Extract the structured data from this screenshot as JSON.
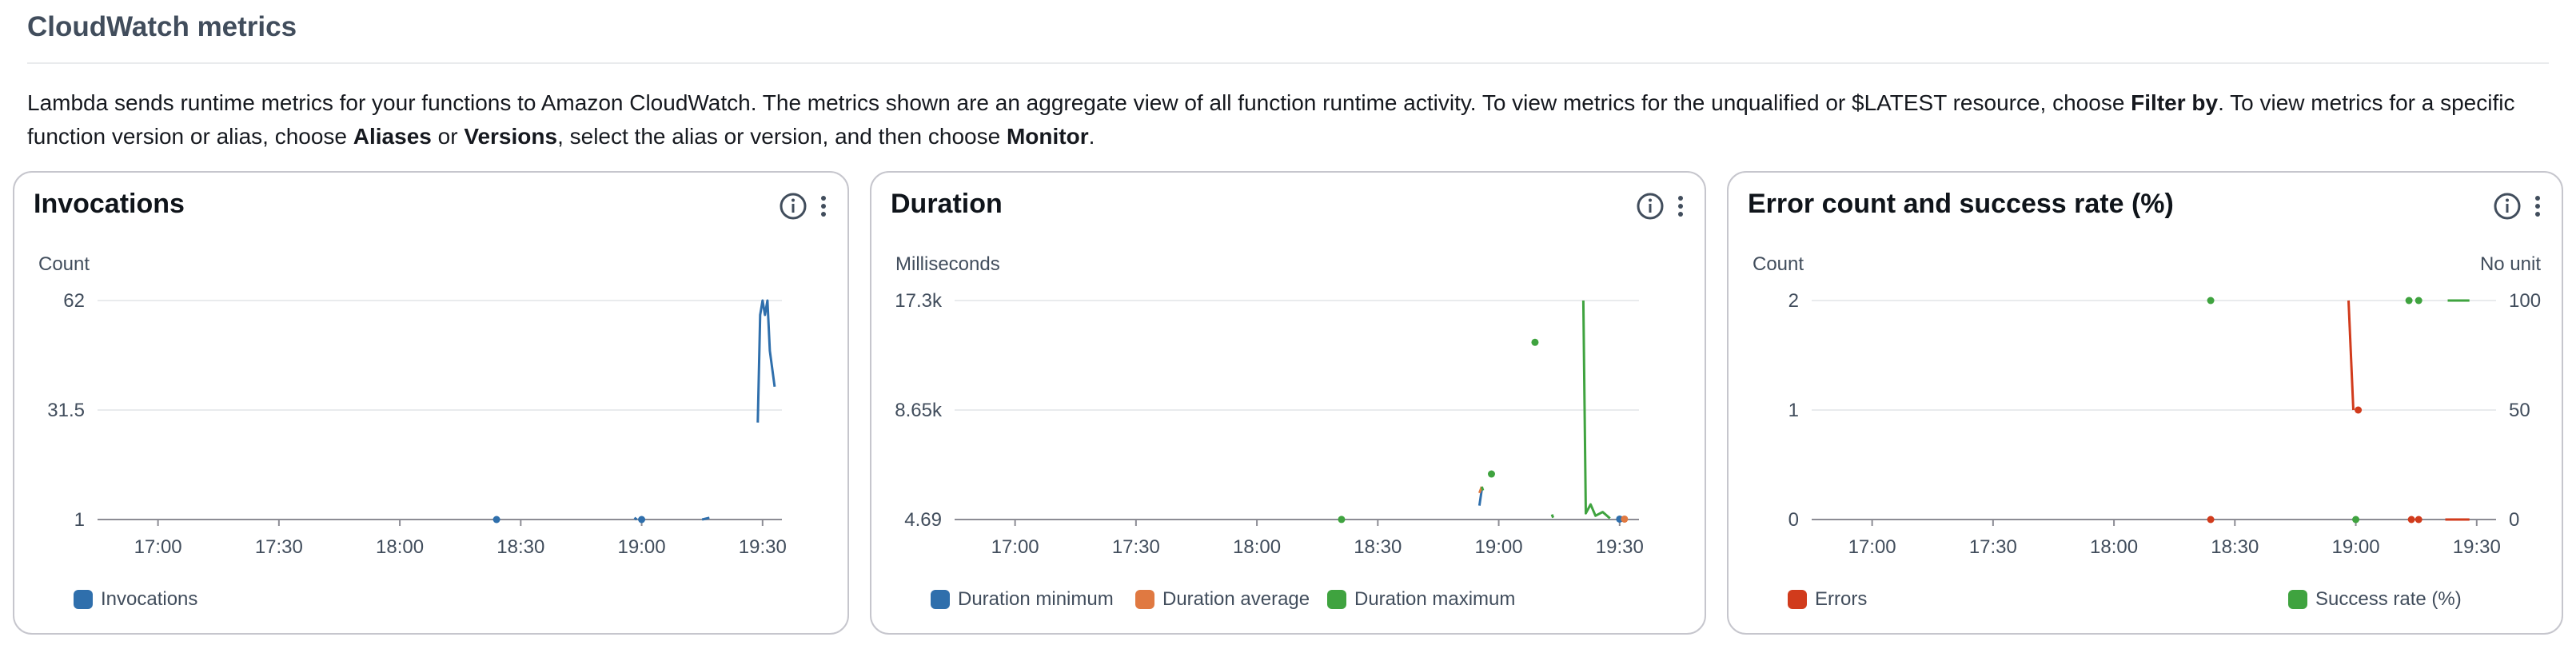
{
  "header": {
    "title": "CloudWatch metrics",
    "description_parts": [
      {
        "text": "Lambda sends runtime metrics for your functions to Amazon CloudWatch. The metrics shown are an aggregate view of all function runtime activity. To view metrics for the unqualified or $LATEST resource, choose ",
        "bold": false
      },
      {
        "text": "Filter by",
        "bold": true
      },
      {
        "text": ". To view metrics for a specific function version or alias, choose ",
        "bold": false
      },
      {
        "text": "Aliases",
        "bold": true
      },
      {
        "text": " or ",
        "bold": false
      },
      {
        "text": "Versions",
        "bold": true
      },
      {
        "text": ", select the alias or version, and then choose ",
        "bold": false
      },
      {
        "text": "Monitor",
        "bold": true
      },
      {
        "text": ".",
        "bold": false
      }
    ]
  },
  "colors": {
    "blue": "#2f6fac",
    "orange": "#e07941",
    "green": "#3fa33f",
    "red": "#d13b1c",
    "grid": "#e9ebed",
    "axis": "#8c8c94"
  },
  "icons": {
    "info": "info-circle-icon",
    "menu": "vertical-ellipsis-icon"
  },
  "panels": [
    {
      "title": "Invocations",
      "legend": [
        "Invocations"
      ],
      "chart_data": {
        "type": "line",
        "title": "Invocations",
        "ylabel": "Count",
        "y_ticks": [
          "62",
          "31.5",
          "1"
        ],
        "ylim": [
          1,
          62
        ],
        "x_ticks": [
          "17:00",
          "17:30",
          "18:00",
          "18:30",
          "19:00",
          "19:30"
        ],
        "series": [
          {
            "name": "Invocations",
            "color": "#2f6fac",
            "segments": [
              [
                [
                  18.4,
                  1
                ]
              ],
              [
                [
                  18.97,
                  1.5
                ],
                [
                  18.98,
                  1
                ]
              ],
              [
                [
                  19.0,
                  1
                ]
              ],
              [
                [
                  19.25,
                  1
                ],
                [
                  19.28,
                  1.5
                ]
              ],
              [
                [
                  19.48,
                  28
                ],
                [
                  19.49,
                  58
                ],
                [
                  19.5,
                  62
                ],
                [
                  19.51,
                  58
                ],
                [
                  19.52,
                  62
                ],
                [
                  19.53,
                  48
                ],
                [
                  19.55,
                  38
                ]
              ]
            ]
          }
        ]
      }
    },
    {
      "title": "Duration",
      "legend": [
        "Duration minimum",
        "Duration average",
        "Duration maximum"
      ],
      "chart_data": {
        "type": "line",
        "title": "Duration",
        "ylabel": "Milliseconds",
        "y_ticks": [
          "17.3k",
          "8.65k",
          "4.69"
        ],
        "ylim": [
          4.69,
          17300
        ],
        "x_ticks": [
          "17:00",
          "17:30",
          "18:00",
          "18:30",
          "19:00",
          "19:30"
        ],
        "series": [
          {
            "name": "Duration minimum",
            "color": "#2f6fac",
            "segments": [
              [
                [
                  18.92,
                  1100
                ],
                [
                  18.93,
                  2400
                ]
              ],
              [
                [
                  19.5,
                  40
                ]
              ]
            ]
          },
          {
            "name": "Duration average",
            "color": "#e07941",
            "segments": [
              [
                [
                  18.92,
                  2100
                ],
                [
                  18.93,
                  2600
                ]
              ],
              [
                [
                  19.52,
                  40
                ]
              ]
            ]
          },
          {
            "name": "Duration maximum",
            "color": "#3fa33f",
            "segments": [
              [
                [
                  18.35,
                  10
                ]
              ],
              [
                [
                  18.93,
                  2600
                ],
                [
                  18.935,
                  2300
                ]
              ],
              [
                [
                  18.97,
                  3600
                ]
              ],
              [
                [
                  19.15,
                  14000
                ]
              ],
              [
                [
                  19.22,
                  400
                ],
                [
                  19.225,
                  150
                ]
              ],
              [
                [
                  19.35,
                  17300
                ],
                [
                  19.36,
                  500
                ],
                [
                  19.38,
                  1200
                ],
                [
                  19.4,
                  300
                ],
                [
                  19.43,
                  600
                ],
                [
                  19.46,
                  100
                ]
              ]
            ]
          }
        ]
      }
    },
    {
      "title": "Error count and success rate (%)",
      "legend": [
        "Errors",
        "Success rate (%)"
      ],
      "chart_data": {
        "type": "line",
        "title": "Error count and success rate (%)",
        "ylabel": "Count",
        "y2label": "No unit",
        "y_ticks": [
          "2",
          "1",
          "0"
        ],
        "y2_ticks": [
          "100",
          "50",
          "0"
        ],
        "ylim": [
          0,
          2
        ],
        "y2lim": [
          0,
          100
        ],
        "x_ticks": [
          "17:00",
          "17:30",
          "18:00",
          "18:30",
          "19:00",
          "19:30"
        ],
        "series": [
          {
            "name": "Errors",
            "color": "#d13b1c",
            "axis": "left",
            "segments": [
              [
                [
                  18.4,
                  0
                ]
              ],
              [
                [
                  18.97,
                  2
                ],
                [
                  18.99,
                  1
                ]
              ],
              [
                [
                  19.01,
                  1
                ]
              ],
              [
                [
                  19.23,
                  0
                ]
              ],
              [
                [
                  19.26,
                  0
                ]
              ],
              [
                [
                  19.37,
                  0
                ],
                [
                  19.47,
                  0
                ]
              ]
            ]
          },
          {
            "name": "Success rate (%)",
            "color": "#3fa33f",
            "axis": "right",
            "segments": [
              [
                [
                  18.4,
                  100
                ]
              ],
              [
                [
                  19.0,
                  0
                ]
              ],
              [
                [
                  19.22,
                  100
                ]
              ],
              [
                [
                  19.26,
                  100
                ]
              ],
              [
                [
                  19.38,
                  100
                ],
                [
                  19.47,
                  100
                ]
              ]
            ]
          }
        ]
      }
    }
  ]
}
